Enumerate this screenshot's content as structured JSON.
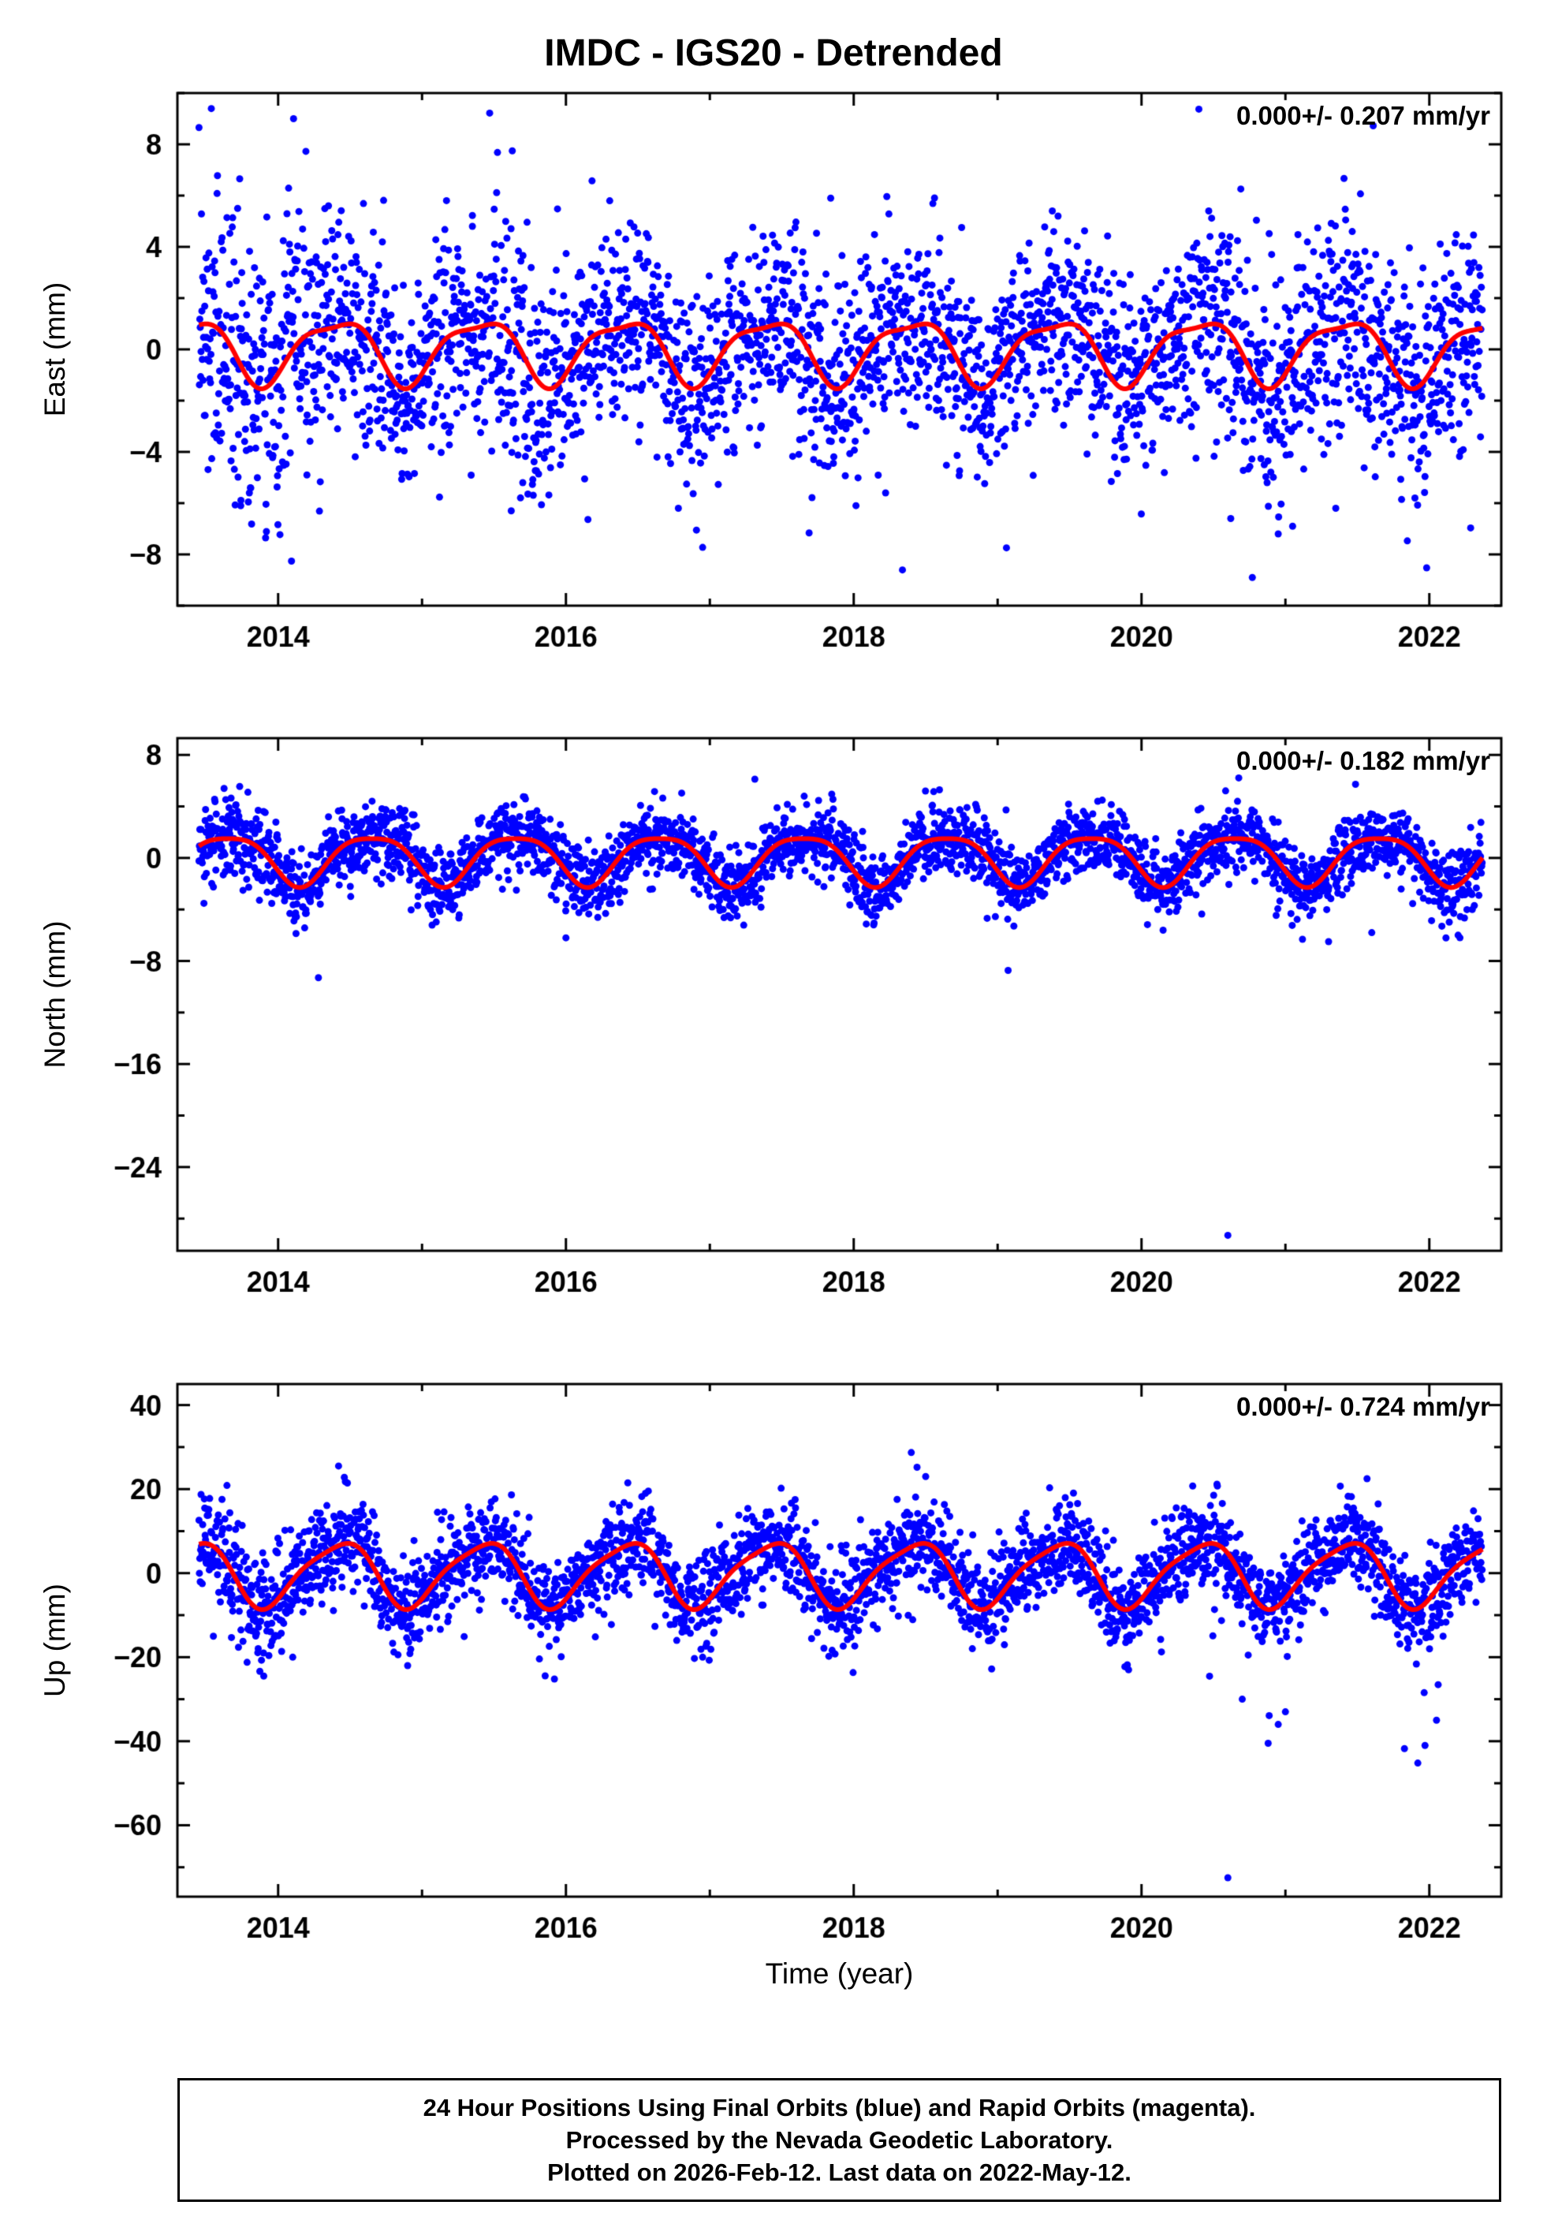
{
  "title": "IMDC - IGS20 - Detrended",
  "xlabel": "Time (year)",
  "caption": {
    "lines": [
      "24 Hour Positions Using Final Orbits (blue) and Rapid Orbits (magenta).",
      "Processed by the Nevada Geodetic Laboratory.",
      "Plotted on 2026-Feb-12. Last data on 2022-May-12."
    ]
  },
  "chart_data": [
    {
      "type": "scatter",
      "panel": "east",
      "ylabel": "East (mm)",
      "annotation": "0.000+/- 0.207 mm/yr",
      "rate_mm_yr": 0.0,
      "rate_sigma_mm_yr": 0.207,
      "xlim": [
        2013.3,
        2022.5
      ],
      "ylim": [
        -10,
        10
      ],
      "xticks": [
        2014,
        2016,
        2018,
        2020,
        2022
      ],
      "yticks": [
        -8,
        -4,
        0,
        4,
        8
      ],
      "x_start": 2013.45,
      "x_end": 2022.37,
      "points_per_year": 350,
      "noise_sigma": 1.8,
      "seasonal": {
        "annual_amp": 1.2,
        "annual_phase": 0.4,
        "semiannual_amp": 0.35,
        "semiannual_phase": 0.12
      },
      "noise_windows": [
        {
          "from": 2013.45,
          "to": 2014.35,
          "factor": 1.55
        },
        {
          "from": 2015.45,
          "to": 2016.05,
          "factor": 1.3
        },
        {
          "from": 2020.3,
          "to": 2022.37,
          "factor": 1.2
        }
      ],
      "neg_tails": [
        {
          "from": 2020.4,
          "to": 2022.35,
          "p": 0.01,
          "mag": 5
        }
      ],
      "outliers": [
        [
          2013.74,
          -6.1
        ],
        [
          2013.8,
          -5.6
        ],
        [
          2014.2,
          -4.9
        ],
        [
          2014.35,
          5.6
        ],
        [
          2015.35,
          4.8
        ],
        [
          2015.62,
          -6.3
        ],
        [
          2015.7,
          -5.2
        ],
        [
          2017.84,
          5.9
        ],
        [
          2019.38,
          5.4
        ],
        [
          2019.42,
          5.2
        ],
        [
          2020.62,
          -6.6
        ],
        [
          2020.77,
          -8.9
        ],
        [
          2020.95,
          -7.2
        ],
        [
          2021.05,
          -6.9
        ],
        [
          2021.35,
          -6.2
        ],
        [
          2021.9,
          -5.8
        ]
      ],
      "marker_color": "#0000ff",
      "line_color": "#ff0000",
      "seed": 7
    },
    {
      "type": "scatter",
      "panel": "north",
      "ylabel": "North (mm)",
      "annotation": "0.000+/- 0.182 mm/yr",
      "rate_mm_yr": 0.0,
      "rate_sigma_mm_yr": 0.182,
      "xlim": [
        2013.3,
        2022.5
      ],
      "ylim": [
        -30.5,
        9.3
      ],
      "xticks": [
        2014,
        2016,
        2018,
        2020,
        2022
      ],
      "yticks": [
        -24,
        -16,
        -8,
        0,
        8
      ],
      "x_start": 2013.45,
      "x_end": 2022.37,
      "points_per_year": 350,
      "noise_sigma": 1.35,
      "seasonal": {
        "annual_amp": 1.9,
        "annual_phase": 0.65,
        "semiannual_amp": 0.4,
        "semiannual_phase": 0.9
      },
      "noise_windows": [
        {
          "from": 2013.45,
          "to": 2014.1,
          "factor": 1.25
        }
      ],
      "neg_tails": [
        {
          "from": 2020.4,
          "to": 2022.3,
          "p": 0.008,
          "mag": 5
        }
      ],
      "outliers": [
        [
          2014.28,
          -9.3
        ],
        [
          2016.0,
          -6.2
        ],
        [
          2020.6,
          -29.3
        ],
        [
          2021.3,
          -6.5
        ],
        [
          2021.6,
          -5.8
        ],
        [
          2022.2,
          -6.0
        ]
      ],
      "marker_color": "#0000ff",
      "line_color": "#ff0000",
      "seed": 13
    },
    {
      "type": "scatter",
      "panel": "up",
      "ylabel": "Up (mm)",
      "annotation": "0.000+/- 0.724 mm/yr",
      "rate_mm_yr": 0.0,
      "rate_sigma_mm_yr": 0.724,
      "xlim": [
        2013.3,
        2022.5
      ],
      "ylim": [
        -77,
        45
      ],
      "xticks": [
        2014,
        2016,
        2018,
        2020,
        2022
      ],
      "yticks": [
        -60,
        -40,
        -20,
        0,
        20,
        40
      ],
      "x_start": 2013.45,
      "x_end": 2022.37,
      "points_per_year": 350,
      "noise_sigma": 5.5,
      "seasonal": {
        "annual_amp": 7.5,
        "annual_phase": 0.42,
        "semiannual_amp": 1.5,
        "semiannual_phase": 0.1
      },
      "noise_windows": [
        {
          "from": 2013.5,
          "to": 2014.2,
          "factor": 1.15
        }
      ],
      "neg_tails": [
        {
          "from": 2020.45,
          "to": 2021.1,
          "p": 0.07,
          "mag": 30
        },
        {
          "from": 2021.75,
          "to": 2022.3,
          "p": 0.07,
          "mag": 26
        },
        {
          "from": 2013.5,
          "to": 2020.4,
          "p": 0.004,
          "mag": 16
        }
      ],
      "outliers": [
        [
          2014.42,
          25.5
        ],
        [
          2014.46,
          22.8
        ],
        [
          2016.43,
          21.5
        ],
        [
          2018.4,
          28.7
        ],
        [
          2018.44,
          25.2
        ],
        [
          2018.5,
          23.0
        ],
        [
          2013.9,
          -24.5
        ],
        [
          2014.9,
          -22.0
        ],
        [
          2015.92,
          -25.2
        ],
        [
          2016.95,
          -20.0
        ],
        [
          2020.6,
          -72.5
        ],
        [
          2020.7,
          -30.0
        ],
        [
          2020.88,
          -40.5
        ],
        [
          2020.95,
          -36.0
        ],
        [
          2021.0,
          -33.0
        ],
        [
          2021.92,
          -45.2
        ],
        [
          2021.97,
          -41.0
        ],
        [
          2022.05,
          -35.0
        ]
      ],
      "marker_color": "#0000ff",
      "line_color": "#ff0000",
      "seed": 29
    }
  ]
}
